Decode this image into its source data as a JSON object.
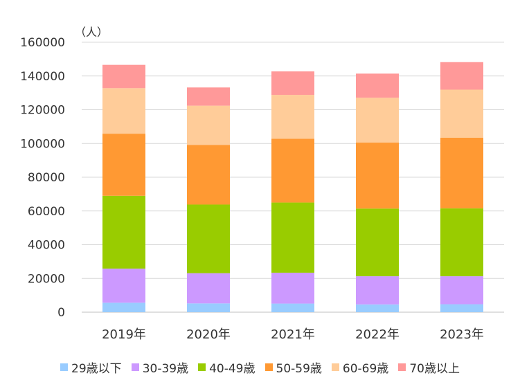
{
  "chart_data": {
    "type": "bar",
    "stacked": true,
    "unit_label": "（人）",
    "categories": [
      "2019年",
      "2020年",
      "2021年",
      "2022年",
      "2023年"
    ],
    "ylim": [
      0,
      160000
    ],
    "yticks": [
      0,
      20000,
      40000,
      60000,
      80000,
      100000,
      120000,
      140000,
      160000
    ],
    "grid": true,
    "legend_position": "bottom",
    "series": [
      {
        "name": "29歳以下",
        "color": "#99CCFF",
        "values": [
          5600,
          5200,
          5100,
          4600,
          4700
        ]
      },
      {
        "name": "30-39歳",
        "color": "#CC99FF",
        "values": [
          20200,
          17900,
          18300,
          16700,
          16600
        ]
      },
      {
        "name": "40-49歳",
        "color": "#99CC00",
        "values": [
          43200,
          40700,
          41600,
          40100,
          40200
        ]
      },
      {
        "name": "50-59歳",
        "color": "#FF9933",
        "values": [
          36800,
          35300,
          37800,
          39100,
          41900
        ]
      },
      {
        "name": "60-69歳",
        "color": "#FFCC99",
        "values": [
          27000,
          23300,
          26000,
          26600,
          28500
        ]
      },
      {
        "name": "70歳以上",
        "color": "#FF9999",
        "values": [
          13800,
          10800,
          13900,
          14300,
          16300
        ]
      }
    ]
  }
}
